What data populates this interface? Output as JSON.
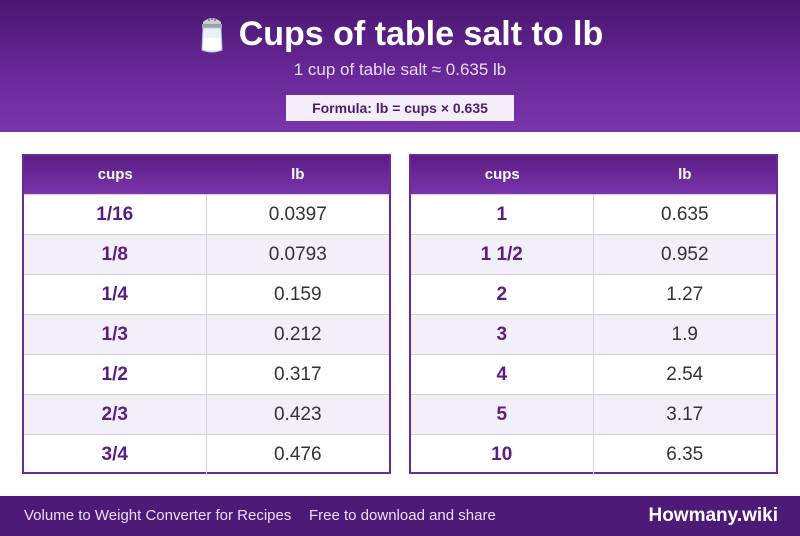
{
  "header": {
    "icon": "salt-shaker-icon",
    "title": "Cups of table salt to lb",
    "subtitle": "1 cup of table salt ≈ 0.635 lb",
    "formula": "Formula: lb = cups × 0.635"
  },
  "tables": [
    {
      "headers": [
        "cups",
        "lb"
      ],
      "rows": [
        {
          "cups": "1/16",
          "lb": "0.0397"
        },
        {
          "cups": "1/8",
          "lb": "0.0793"
        },
        {
          "cups": "1/4",
          "lb": "0.159"
        },
        {
          "cups": "1/3",
          "lb": "0.212"
        },
        {
          "cups": "1/2",
          "lb": "0.317"
        },
        {
          "cups": "2/3",
          "lb": "0.423"
        },
        {
          "cups": "3/4",
          "lb": "0.476"
        }
      ]
    },
    {
      "headers": [
        "cups",
        "lb"
      ],
      "rows": [
        {
          "cups": "1",
          "lb": "0.635"
        },
        {
          "cups": "1 1/2",
          "lb": "0.952"
        },
        {
          "cups": "2",
          "lb": "1.27"
        },
        {
          "cups": "3",
          "lb": "1.9"
        },
        {
          "cups": "4",
          "lb": "2.54"
        },
        {
          "cups": "5",
          "lb": "3.17"
        },
        {
          "cups": "10",
          "lb": "6.35"
        }
      ]
    }
  ],
  "footer": {
    "left": "Volume to Weight Converter for Recipes",
    "middle": "Free to download and share",
    "brand": "Howmany.wiki"
  },
  "colors": {
    "primary": "#5a1d84",
    "accent": "#7a35ab",
    "row_alt": "#f3eff8"
  }
}
